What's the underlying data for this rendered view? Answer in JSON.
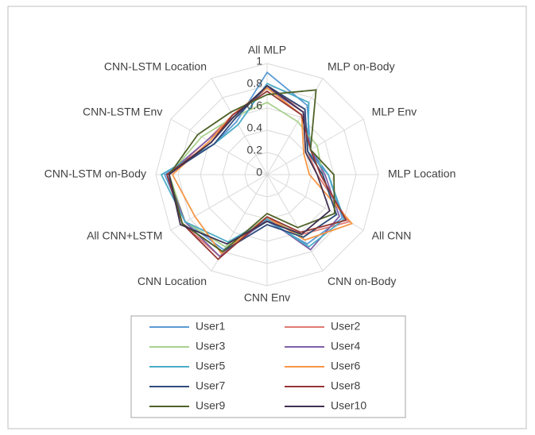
{
  "chart_data": {
    "type": "radar",
    "categories": [
      "All MLP",
      "MLP on-Body",
      "MLP Env",
      "MLP Location",
      "All CNN",
      "CNN on-Body",
      "CNN Env",
      "CNN Location",
      "All CNN+LSTM",
      "CNN-LSTM on-Body",
      "CNN-LSTM Env",
      "CNN-LSTM Location"
    ],
    "rlim": [
      0,
      1
    ],
    "rticks": [
      0,
      0.2,
      0.4,
      0.6,
      0.8,
      1
    ],
    "grid": true,
    "legend": "bottom",
    "series": [
      {
        "name": "User1",
        "color": "#5b9bd5",
        "values": [
          0.92,
          0.72,
          0.45,
          0.55,
          0.78,
          0.72,
          0.42,
          0.78,
          0.85,
          0.92,
          0.55,
          0.55
        ]
      },
      {
        "name": "User2",
        "color": "#e07b73",
        "values": [
          0.78,
          0.68,
          0.42,
          0.45,
          0.85,
          0.62,
          0.4,
          0.85,
          0.88,
          0.88,
          0.62,
          0.62
        ]
      },
      {
        "name": "User3",
        "color": "#a9d18e",
        "values": [
          0.65,
          0.55,
          0.52,
          0.5,
          0.72,
          0.65,
          0.38,
          0.75,
          0.85,
          0.88,
          0.68,
          0.6
        ]
      },
      {
        "name": "User4",
        "color": "#7e60a8",
        "values": [
          0.78,
          0.65,
          0.45,
          0.52,
          0.75,
          0.78,
          0.4,
          0.85,
          0.85,
          0.9,
          0.62,
          0.6
        ]
      },
      {
        "name": "User5",
        "color": "#4bacc6",
        "values": [
          0.82,
          0.75,
          0.42,
          0.55,
          0.8,
          0.75,
          0.4,
          0.7,
          0.85,
          0.95,
          0.55,
          0.52
        ]
      },
      {
        "name": "User6",
        "color": "#f79646",
        "values": [
          0.78,
          0.62,
          0.38,
          0.38,
          0.88,
          0.68,
          0.38,
          0.82,
          0.75,
          0.85,
          0.6,
          0.62
        ]
      },
      {
        "name": "User7",
        "color": "#2f4b7c",
        "values": [
          0.8,
          0.68,
          0.42,
          0.5,
          0.72,
          0.65,
          0.45,
          0.8,
          0.88,
          0.9,
          0.55,
          0.58
        ]
      },
      {
        "name": "User8",
        "color": "#943634",
        "values": [
          0.75,
          0.62,
          0.45,
          0.48,
          0.82,
          0.6,
          0.38,
          0.88,
          0.88,
          0.9,
          0.58,
          0.62
        ]
      },
      {
        "name": "User9",
        "color": "#4f6228",
        "values": [
          0.72,
          0.88,
          0.45,
          0.6,
          0.7,
          0.55,
          0.35,
          0.8,
          0.88,
          0.88,
          0.72,
          0.65
        ]
      },
      {
        "name": "User10",
        "color": "#3f3151",
        "values": [
          0.8,
          0.65,
          0.4,
          0.45,
          0.65,
          0.62,
          0.42,
          0.72,
          0.9,
          0.88,
          0.58,
          0.6
        ]
      }
    ]
  }
}
